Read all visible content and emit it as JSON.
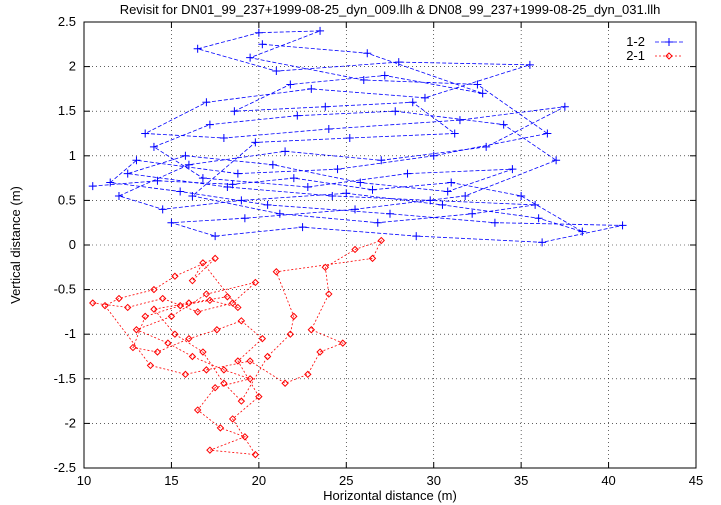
{
  "chart_data": {
    "type": "line",
    "title": "Revisit for DN01_99_237+1999-08-25_dyn_009.llh & DN08_99_237+1999-08-25_dyn_031.llh",
    "xlabel": "Horizontal distance (m)",
    "ylabel": "Vertical distance (m)",
    "xlim": [
      10,
      45
    ],
    "ylim": [
      -2.5,
      2.5
    ],
    "xticks": [
      "10",
      "15",
      "20",
      "25",
      "30",
      "35",
      "40",
      "45"
    ],
    "yticks": [
      "-2.5",
      "-2",
      "-1.5",
      "-1",
      "-0.5",
      "0",
      "0.5",
      "1",
      "1.5",
      "2",
      "2.5"
    ],
    "grid": true,
    "legend_position": "top-right",
    "series": [
      {
        "name": "1-2",
        "color": "#0000ff",
        "marker": "plus",
        "line_style": "dashed",
        "points": [
          [
            10.5,
            0.66
          ],
          [
            14.2,
            0.72
          ],
          [
            18.5,
            0.68
          ],
          [
            22.0,
            0.75
          ],
          [
            26.5,
            0.62
          ],
          [
            31.0,
            0.7
          ],
          [
            35.0,
            0.55
          ],
          [
            38.5,
            0.15
          ],
          [
            36.0,
            0.3
          ],
          [
            30.5,
            0.45
          ],
          [
            25.0,
            0.58
          ],
          [
            19.0,
            0.5
          ],
          [
            14.5,
            0.4
          ],
          [
            12.0,
            0.55
          ],
          [
            16.0,
            0.9
          ],
          [
            21.5,
            1.05
          ],
          [
            27.0,
            0.95
          ],
          [
            33.0,
            1.1
          ],
          [
            37.5,
            1.55
          ],
          [
            31.5,
            1.4
          ],
          [
            24.0,
            1.3
          ],
          [
            18.0,
            1.2
          ],
          [
            13.5,
            1.25
          ],
          [
            17.0,
            1.6
          ],
          [
            23.0,
            1.75
          ],
          [
            29.5,
            1.65
          ],
          [
            35.5,
            2.02
          ],
          [
            28.0,
            2.05
          ],
          [
            21.0,
            1.95
          ],
          [
            16.5,
            2.2
          ],
          [
            20.0,
            2.38
          ],
          [
            23.5,
            2.4
          ],
          [
            19.5,
            2.1
          ],
          [
            26.0,
            1.85
          ],
          [
            32.5,
            1.8
          ],
          [
            36.5,
            1.25
          ],
          [
            30.0,
            1.0
          ],
          [
            24.5,
            0.85
          ],
          [
            18.8,
            0.8
          ],
          [
            13.0,
            0.95
          ],
          [
            11.5,
            0.7
          ],
          [
            15.5,
            0.6
          ],
          [
            20.5,
            0.45
          ],
          [
            27.5,
            0.35
          ],
          [
            33.5,
            0.25
          ],
          [
            40.8,
            0.22
          ],
          [
            36.2,
            0.03
          ],
          [
            29.0,
            0.1
          ],
          [
            22.5,
            0.2
          ],
          [
            17.5,
            0.1
          ],
          [
            15.0,
            0.25
          ],
          [
            19.2,
            0.3
          ],
          [
            25.5,
            0.4
          ],
          [
            31.8,
            0.55
          ],
          [
            37.0,
            0.95
          ],
          [
            34.0,
            1.35
          ],
          [
            27.8,
            1.5
          ],
          [
            22.2,
            1.45
          ],
          [
            17.2,
            1.35
          ],
          [
            14.0,
            1.1
          ],
          [
            16.8,
            0.75
          ],
          [
            22.8,
            0.65
          ],
          [
            28.5,
            0.8
          ],
          [
            34.5,
            0.85
          ],
          [
            30.8,
            0.6
          ],
          [
            25.8,
            0.7
          ],
          [
            20.8,
            0.9
          ],
          [
            15.8,
            1.0
          ],
          [
            12.5,
            0.8
          ],
          [
            18.2,
            0.65
          ],
          [
            24.2,
            0.55
          ],
          [
            29.8,
            0.5
          ],
          [
            35.8,
            0.45
          ],
          [
            32.2,
            0.35
          ],
          [
            26.8,
            0.25
          ],
          [
            21.2,
            0.35
          ],
          [
            16.2,
            0.55
          ],
          [
            19.8,
            1.15
          ],
          [
            25.2,
            1.2
          ],
          [
            31.2,
            1.25
          ],
          [
            28.8,
            1.6
          ],
          [
            23.8,
            1.55
          ],
          [
            18.6,
            1.5
          ],
          [
            21.8,
            1.8
          ],
          [
            27.2,
            1.9
          ],
          [
            32.8,
            1.7
          ],
          [
            26.2,
            2.15
          ],
          [
            20.2,
            2.25
          ]
        ]
      },
      {
        "name": "2-1",
        "color": "#ff0000",
        "marker": "diamond",
        "line_style": "dotted",
        "points": [
          [
            10.5,
            -0.65
          ],
          [
            12.5,
            -0.7
          ],
          [
            14.5,
            -0.6
          ],
          [
            16.5,
            -0.75
          ],
          [
            18.5,
            -0.65
          ],
          [
            19.8,
            -0.42
          ],
          [
            17.0,
            -0.55
          ],
          [
            15.0,
            -0.8
          ],
          [
            13.0,
            -0.95
          ],
          [
            14.8,
            -1.1
          ],
          [
            16.2,
            -1.25
          ],
          [
            18.0,
            -1.4
          ],
          [
            19.5,
            -1.5
          ],
          [
            17.5,
            -1.6
          ],
          [
            16.5,
            -1.85
          ],
          [
            17.8,
            -2.05
          ],
          [
            19.2,
            -2.15
          ],
          [
            17.2,
            -2.3
          ],
          [
            19.8,
            -2.35
          ],
          [
            18.5,
            -1.95
          ],
          [
            20.0,
            -1.7
          ],
          [
            18.8,
            -1.3
          ],
          [
            20.2,
            -1.05
          ],
          [
            19.0,
            -0.85
          ],
          [
            17.6,
            -0.95
          ],
          [
            16.0,
            -1.05
          ],
          [
            14.2,
            -1.2
          ],
          [
            12.8,
            -1.15
          ],
          [
            13.5,
            -0.8
          ],
          [
            15.5,
            -0.68
          ],
          [
            17.2,
            -0.62
          ],
          [
            18.8,
            -0.7
          ],
          [
            16.8,
            -0.2
          ],
          [
            16.2,
            -0.4
          ],
          [
            17.5,
            -0.15
          ],
          [
            15.2,
            -0.35
          ],
          [
            14.0,
            -0.5
          ],
          [
            12.0,
            -0.6
          ],
          [
            11.2,
            -0.68
          ],
          [
            13.8,
            -1.35
          ],
          [
            15.8,
            -1.45
          ],
          [
            17.0,
            -1.4
          ],
          [
            19.5,
            -1.3
          ],
          [
            21.5,
            -1.55
          ],
          [
            22.8,
            -1.45
          ],
          [
            23.5,
            -1.2
          ],
          [
            24.8,
            -1.1
          ],
          [
            23.0,
            -0.95
          ],
          [
            24.0,
            -0.55
          ],
          [
            23.8,
            -0.25
          ],
          [
            25.5,
            -0.05
          ],
          [
            27.0,
            0.05
          ],
          [
            26.5,
            -0.15
          ],
          [
            21.0,
            -0.3
          ],
          [
            22.0,
            -0.8
          ],
          [
            21.8,
            -1.0
          ],
          [
            20.5,
            -1.25
          ],
          [
            19.0,
            -1.75
          ],
          [
            18.0,
            -1.55
          ],
          [
            16.8,
            -1.2
          ],
          [
            15.2,
            -1.0
          ],
          [
            14.0,
            -0.72
          ],
          [
            16.0,
            -0.65
          ],
          [
            18.2,
            -0.58
          ]
        ]
      }
    ]
  }
}
